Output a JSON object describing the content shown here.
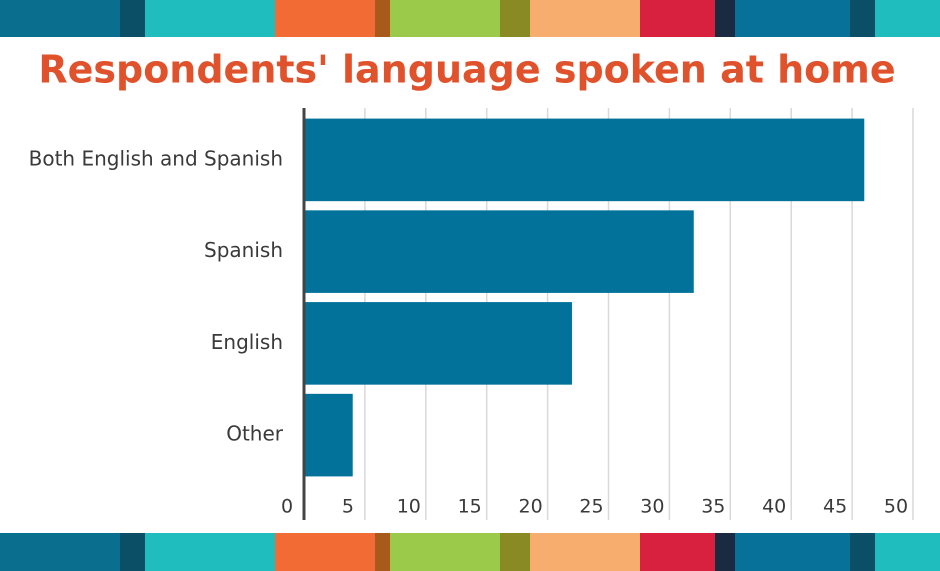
{
  "chart_data": {
    "type": "bar",
    "orientation": "horizontal",
    "title": "Respondents' language spoken at home",
    "categories": [
      "Both English and Spanish",
      "Spanish",
      "English",
      "Other"
    ],
    "values": [
      46,
      32,
      22,
      4
    ],
    "color": "#03729a",
    "xlim": [
      0,
      50
    ],
    "xticks": [
      0,
      5,
      10,
      15,
      20,
      25,
      30,
      35,
      40,
      45,
      50
    ],
    "grid": true
  }
}
